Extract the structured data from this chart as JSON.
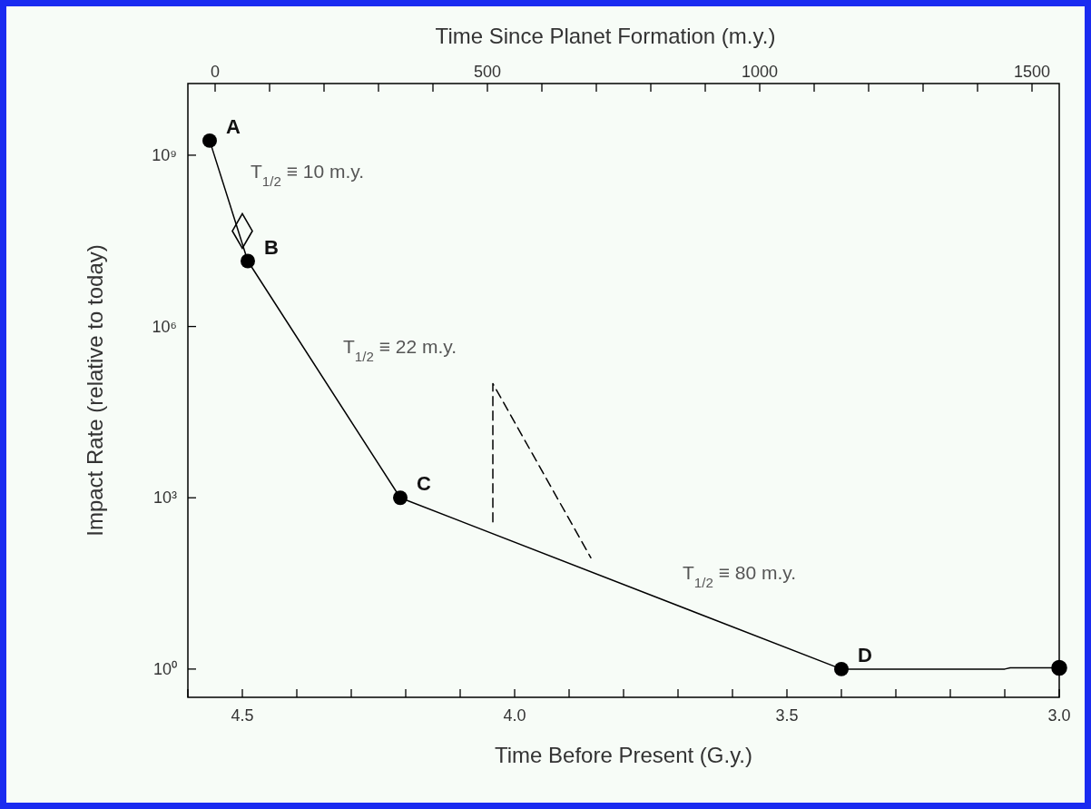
{
  "chart_data": {
    "type": "line",
    "xlabel": "Time Before Present (G.y.)",
    "ylabel": "Impact Rate (relative to today)",
    "x2label": "Time Since Planet Formation (m.y.)",
    "log": "y",
    "grid": false,
    "marker": "circle",
    "line_style": "solid",
    "xlim": [
      4.6,
      3.0
    ],
    "xticks": [
      {
        "value": 4.6,
        "label": null
      },
      4.5,
      {
        "value": 4.4,
        "label": null
      },
      {
        "value": 4.3,
        "label": null
      },
      {
        "value": 4.2,
        "label": null
      },
      {
        "value": 4.1,
        "label": null
      },
      {
        "value": 4.0,
        "label": "4.0"
      },
      {
        "value": 3.9,
        "label": null
      },
      {
        "value": 3.8,
        "label": null
      },
      {
        "value": 3.7,
        "label": null
      },
      {
        "value": 3.6,
        "label": null
      },
      3.5,
      {
        "value": 3.4,
        "label": null
      },
      {
        "value": 3.3,
        "label": null
      },
      {
        "value": 3.2,
        "label": null
      },
      {
        "value": 3.1,
        "label": null
      },
      {
        "value": 3.0,
        "label": "3.0"
      }
    ],
    "x2lim": [
      -50,
      1550
    ],
    "x2ticks": [
      0,
      {
        "value": 100,
        "label": null
      },
      {
        "value": 200,
        "label": null
      },
      {
        "value": 300,
        "label": null
      },
      {
        "value": 400,
        "label": null
      },
      500,
      {
        "value": 600,
        "label": null
      },
      {
        "value": 700,
        "label": null
      },
      {
        "value": 800,
        "label": null
      },
      {
        "value": 900,
        "label": null
      },
      1000,
      {
        "value": 1100,
        "label": null
      },
      {
        "value": 1200,
        "label": null
      },
      {
        "value": 1300,
        "label": null
      },
      {
        "value": 1400,
        "label": null
      },
      1500
    ],
    "ylim": [
      0.32,
      18000000000.0
    ],
    "yticks": [
      {
        "value": 1,
        "label": "10⁰"
      },
      {
        "value": 1000,
        "label": "10³"
      },
      {
        "value": 1000000,
        "label": "10⁶"
      },
      {
        "value": 1000000000,
        "label": "10⁹"
      }
    ],
    "series": [
      {
        "color": "#000000",
        "x": [
          4.56,
          4.49,
          4.21,
          3.4
        ],
        "values": [
          1800000000.0,
          14000000.0,
          1000,
          1
        ]
      },
      {
        "color": "#000000",
        "marker": "none",
        "x": [
          3.4,
          3.1,
          3.09,
          3.0
        ],
        "values": [
          1,
          1,
          1.05,
          1.05
        ]
      },
      {
        "type": "scatter",
        "color": "#000000",
        "x": [
          3.0
        ],
        "values": [
          1.05
        ]
      },
      {
        "color": "#000000",
        "marker": "none",
        "line_style": "dashed",
        "x": [
          4.04,
          4.04,
          3.86
        ],
        "values": [
          380,
          100000,
          89
        ]
      },
      {
        "type": "scatter",
        "marker": "diamond",
        "color": "#000000",
        "x": [
          4.5
        ],
        "values": [
          47000000.0
        ]
      }
    ],
    "annotations": [
      {
        "text": "A",
        "x": 4.56,
        "y": 1800000000.0
      },
      {
        "text": "B",
        "x": 4.49,
        "y": 14000000.0
      },
      {
        "text": "C",
        "x": 4.21,
        "y": 1000
      },
      {
        "text": "D",
        "x": 3.4,
        "y": 1
      },
      "T$_{1/2}$ ≡ 10 m.y.",
      "T$_{1/2}$ ≡ 22 m.y.",
      "T$_{1/2}$ ≡ 80 m.y."
    ]
  }
}
